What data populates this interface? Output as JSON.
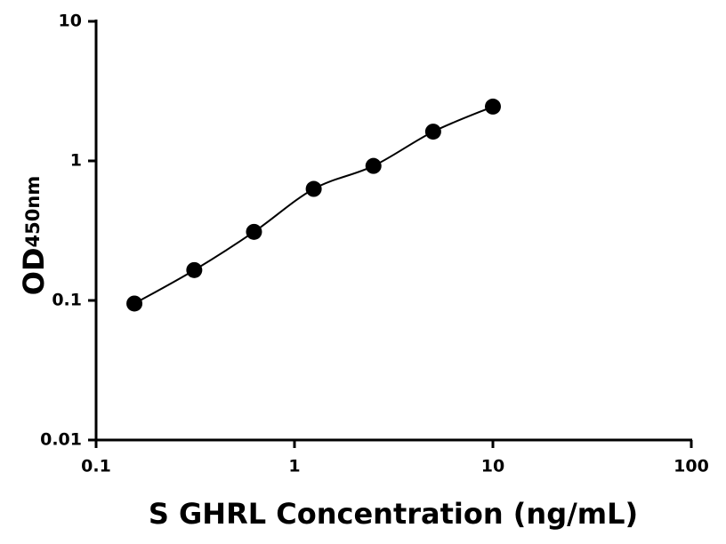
{
  "chart_data": {
    "type": "scatter",
    "x_label": "S GHRL Concentration (ng/mL)",
    "y_label": "OD",
    "y_label_sub": "450nm",
    "x": [
      0.156,
      0.3125,
      0.625,
      1.25,
      2.5,
      5,
      10
    ],
    "series": [
      {
        "color": "#000000",
        "values": [
          0.095,
          0.165,
          0.31,
          0.63,
          0.92,
          1.62,
          2.45
        ]
      }
    ],
    "xscale": "log",
    "yscale": "log",
    "xlim": [
      0.1,
      100
    ],
    "ylim": [
      0.01,
      10
    ],
    "xticks": [
      0.1,
      1,
      10,
      100
    ],
    "yticks": [
      0.01,
      0.1,
      1,
      10
    ],
    "fit_line": true
  }
}
